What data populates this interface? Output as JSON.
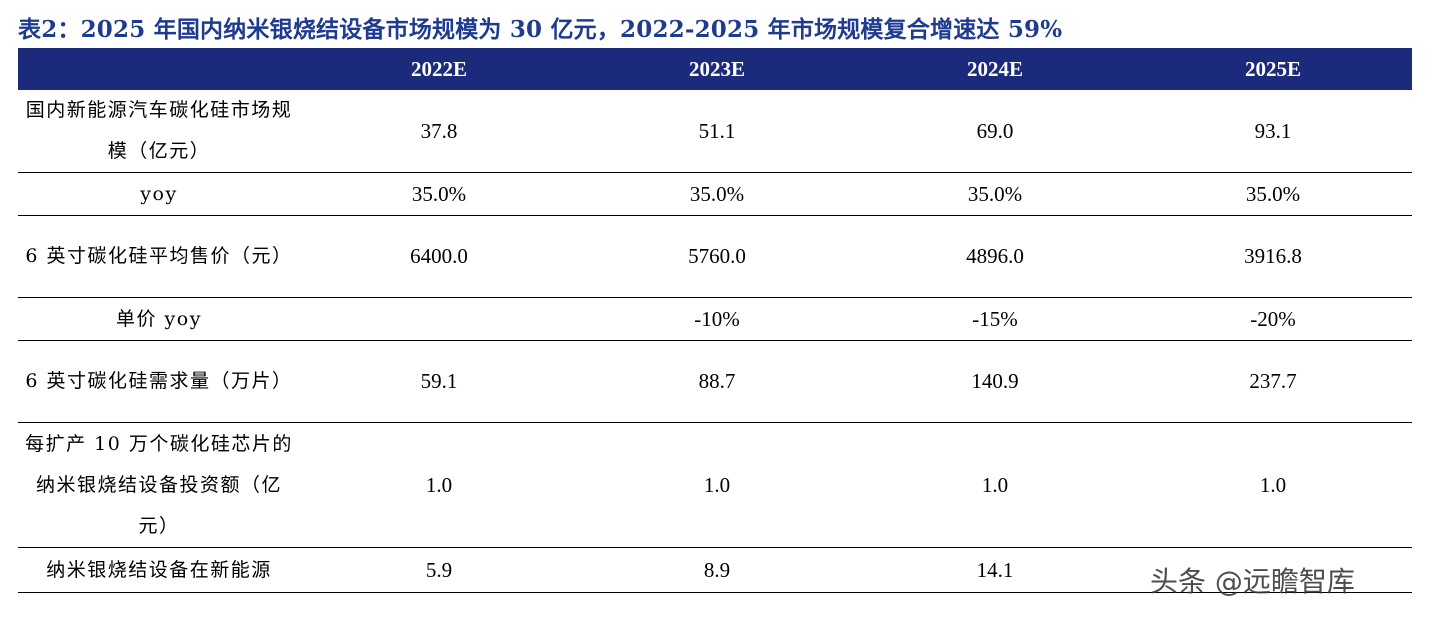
{
  "title": "表2：2025 年国内纳米银烧结设备市场规模为 30 亿元，2022-2025 年市场规模复合增速达 59%",
  "table": {
    "header": [
      "",
      "2022E",
      "2023E",
      "2024E",
      "2025E"
    ],
    "rows": [
      {
        "label": "国内新能源汽车碳化硅市场规模（亿元）",
        "values": [
          "37.8",
          "51.1",
          "69.0",
          "93.1"
        ]
      },
      {
        "label": "yoy",
        "values": [
          "35.0%",
          "35.0%",
          "35.0%",
          "35.0%"
        ]
      },
      {
        "label": "6 英寸碳化硅平均售价（元）",
        "values": [
          "6400.0",
          "5760.0",
          "4896.0",
          "3916.8"
        ]
      },
      {
        "label": "单价 yoy",
        "values": [
          "",
          "-10%",
          "-15%",
          "-20%"
        ]
      },
      {
        "label": "6 英寸碳化硅需求量（万片）",
        "values": [
          "59.1",
          "88.7",
          "140.9",
          "237.7"
        ]
      },
      {
        "label": "每扩产 10 万个碳化硅芯片的纳米银烧结设备投资额（亿元）",
        "values": [
          "1.0",
          "1.0",
          "1.0",
          "1.0"
        ]
      },
      {
        "label": "纳米银烧结设备在新能源",
        "values": [
          "5.9",
          "8.9",
          "14.1",
          ""
        ]
      }
    ]
  },
  "watermark": "头条 @远瞻智库"
}
